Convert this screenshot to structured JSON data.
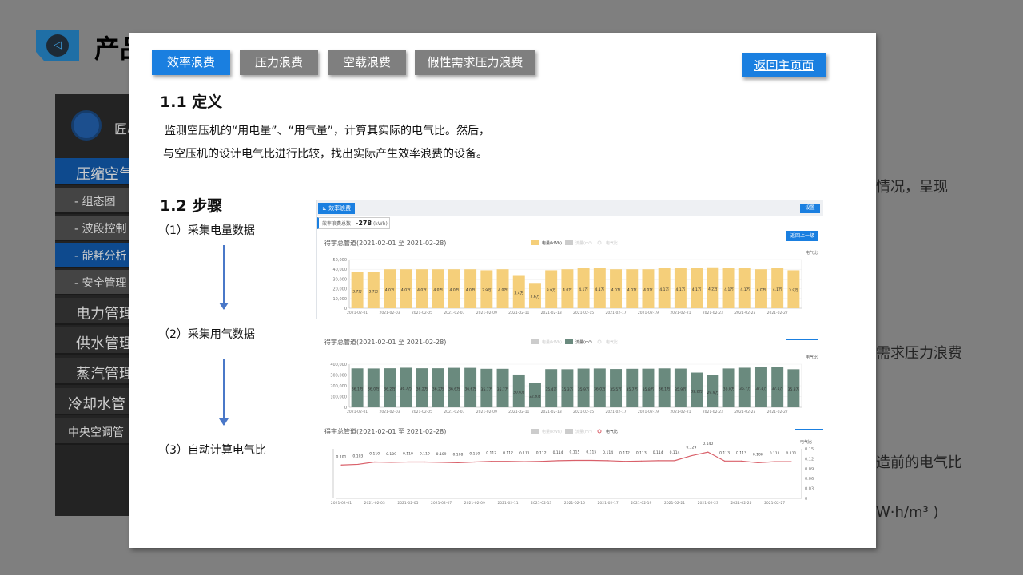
{
  "background": {
    "title": "产品",
    "sidebar": {
      "brand": "匠心",
      "items": [
        "压缩空气",
        "- 组态图",
        "- 波段控制",
        "- 能耗分析",
        "- 安全管理",
        "电力管理",
        "供水管理",
        "蒸汽管理",
        "冷却水管",
        "中央空调管"
      ]
    },
    "fragments": [
      "情况，呈现",
      "需求压力浪费",
      "造前的电气比",
      "W·h/m³ )"
    ]
  },
  "modal": {
    "tabs": [
      {
        "label": "效率浪费",
        "active": true
      },
      {
        "label": "压力浪费"
      },
      {
        "label": "空载浪费"
      },
      {
        "label": "假性需求压力浪费"
      }
    ],
    "home_button": "返回主页面",
    "s1_title": "1.1 定义",
    "s1_text": [
      "监测空压机的“用电量”、“用气量”，计算其实际的电气比。然后，",
      "与空压机的设计电气比进行比较，找出实际产生效率浪费的设备。"
    ],
    "s2_title": "1.2 步骤",
    "steps": [
      "（1）采集电量数据",
      "（2）采集用气数据",
      "（3）自动计算电气比"
    ],
    "panel": {
      "tag": "效率浪费",
      "settings": "设置",
      "stat_label": "效率浪费总数：",
      "stat_value": "-278",
      "stat_unit": "(kWh)",
      "back": "返回上一级"
    }
  },
  "chart_data": [
    {
      "type": "bar",
      "title": "得宇总管道(2021-02-01 至 2021-02-28)",
      "legend": [
        "电量(kWh)",
        "流量(m³)",
        "电气比"
      ],
      "right_label": "电气比",
      "ylim": [
        0,
        50000
      ],
      "yticks": [
        "0",
        "10,000",
        "20,000",
        "30,000",
        "40,000",
        "50,000"
      ],
      "color": "#f5cf7a",
      "values": [
        37000,
        37000,
        40000,
        40000,
        40000,
        40000,
        40000,
        40000,
        39000,
        40000,
        34000,
        26000,
        39000,
        40000,
        41000,
        41000,
        40000,
        40000,
        40000,
        41000,
        41000,
        41000,
        42000,
        41000,
        41000,
        40000,
        41000,
        39000
      ],
      "labels": [
        "3.7万",
        "3.7万",
        "4.0万",
        "4.0万",
        "4.0万",
        "4.0万",
        "4.0万",
        "4.0万",
        "3.9万",
        "4.0万",
        "3.4万",
        "2.6万",
        "3.9万",
        "4.0万",
        "4.1万",
        "4.1万",
        "4.0万",
        "4.0万",
        "4.0万",
        "4.1万",
        "4.1万",
        "4.1万",
        "4.2万",
        "4.1万",
        "4.1万",
        "4.0万",
        "4.1万",
        "3.9万"
      ]
    },
    {
      "type": "bar",
      "title": "得宇总管道(2021-02-01 至 2021-02-28)",
      "legend": [
        "电量(kWh)",
        "流量(m³)",
        "电气比"
      ],
      "right_label": "电气比",
      "ylim": [
        0,
        400000
      ],
      "yticks": [
        "0",
        "100,000",
        "200,000",
        "300,000",
        "400,000"
      ],
      "color": "#6a8a7e",
      "values": [
        361000,
        360000,
        362000,
        367000,
        362000,
        362000,
        366000,
        366000,
        357000,
        357000,
        304000,
        226000,
        354000,
        353000,
        359000,
        360000,
        355000,
        357000,
        358000,
        361000,
        359000,
        322000,
        299000,
        360000,
        367000,
        374000,
        371000,
        353000
      ],
      "labels": [
        "36.1万",
        "36.0万",
        "36.2万",
        "36.7万",
        "36.2万",
        "36.2万",
        "36.6万",
        "36.6万",
        "35.7万",
        "35.7万",
        "30.4万",
        "22.6万",
        "35.4万",
        "35.3万",
        "35.9万",
        "36.0万",
        "35.5万",
        "35.7万",
        "35.8万",
        "36.1万",
        "35.9万",
        "32.2万",
        "29.9万",
        "36.0万",
        "36.7万",
        "37.4万",
        "37.1万",
        "35.3万"
      ]
    },
    {
      "type": "line",
      "title": "得宇总管道(2021-02-01 至 2021-02-28)",
      "legend": [
        "电量(kWh)",
        "流量(m³)",
        "电气比"
      ],
      "right_label": "电气比",
      "ylim": [
        0,
        0.15
      ],
      "yticks": [
        "0",
        "0.03",
        "0.06",
        "0.09",
        "0.12",
        "0.15"
      ],
      "color": "#d9606a",
      "values": [
        0.101,
        0.103,
        0.11,
        0.109,
        0.11,
        0.11,
        0.109,
        0.108,
        0.11,
        0.112,
        0.112,
        0.111,
        0.112,
        0.114,
        0.115,
        0.115,
        0.114,
        0.112,
        0.113,
        0.114,
        0.114,
        0.129,
        0.14,
        0.113,
        0.113,
        0.108,
        0.111,
        0.111
      ],
      "labels": [
        "0.101",
        "0.103",
        "0.110",
        "0.109",
        "0.110",
        "0.110",
        "0.109",
        "0.108",
        "0.110",
        "0.112",
        "0.112",
        "0.111",
        "0.112",
        "0.114",
        "0.115",
        "0.115",
        "0.114",
        "0.112",
        "0.113",
        "0.114",
        "0.114",
        "0.129",
        "0.140",
        "0.113",
        "0.113",
        "0.108",
        "0.111",
        "0.111"
      ]
    }
  ],
  "x_categories": [
    "2021-02-01",
    "2021-02-03",
    "2021-02-05",
    "2021-02-07",
    "2021-02-09",
    "2021-02-11",
    "2021-02-13",
    "2021-02-15",
    "2021-02-17",
    "2021-02-19",
    "2021-02-21",
    "2021-02-23",
    "2021-02-25",
    "2021-02-27"
  ]
}
